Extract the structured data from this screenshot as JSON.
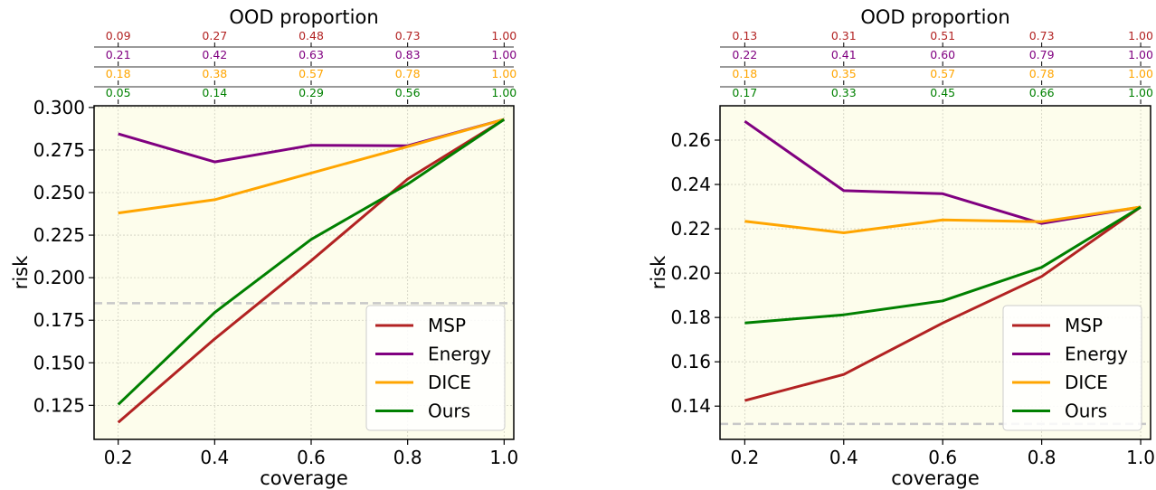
{
  "chart_data": [
    {
      "type": "line",
      "x": [
        0.2,
        0.4,
        0.6,
        0.8,
        1.0
      ],
      "xlabel": "coverage",
      "ylabel": "risk",
      "xticks": [
        "0.2",
        "0.4",
        "0.6",
        "0.8",
        "1.0"
      ],
      "yticks": [
        "0.125",
        "0.150",
        "0.175",
        "0.200",
        "0.225",
        "0.250",
        "0.275",
        "0.300"
      ],
      "ytick_values": [
        0.125,
        0.15,
        0.175,
        0.2,
        0.225,
        0.25,
        0.275,
        0.3
      ],
      "xlim": [
        0.15,
        1.02
      ],
      "ylim": [
        0.105,
        0.301
      ],
      "grid": true,
      "legend_position": "lower-right",
      "reference_line": 0.185,
      "series": [
        {
          "name": "MSP",
          "color": "#b22222",
          "values": [
            0.115,
            0.164,
            0.21,
            0.258,
            0.293
          ]
        },
        {
          "name": "Energy",
          "color": "#800080",
          "values": [
            0.2845,
            0.268,
            0.2778,
            0.2775,
            0.293
          ]
        },
        {
          "name": "DICE",
          "color": "#ffa500",
          "values": [
            0.238,
            0.2458,
            0.2615,
            0.277,
            0.293
          ]
        },
        {
          "name": "Ours",
          "color": "#008000",
          "values": [
            0.1255,
            0.1795,
            0.2225,
            0.255,
            0.293
          ]
        }
      ],
      "top_axis": {
        "title": "OOD proportion",
        "rows": [
          {
            "color": "#b22222",
            "labels": [
              "0.09",
              "0.27",
              "0.48",
              "0.73",
              "1.00"
            ]
          },
          {
            "color": "#800080",
            "labels": [
              "0.21",
              "0.42",
              "0.63",
              "0.83",
              "1.00"
            ]
          },
          {
            "color": "#ffa500",
            "labels": [
              "0.18",
              "0.38",
              "0.57",
              "0.78",
              "1.00"
            ]
          },
          {
            "color": "#008000",
            "labels": [
              "0.05",
              "0.14",
              "0.29",
              "0.56",
              "1.00"
            ]
          }
        ]
      }
    },
    {
      "type": "line",
      "x": [
        0.2,
        0.4,
        0.6,
        0.8,
        1.0
      ],
      "xlabel": "coverage",
      "ylabel": "risk",
      "xticks": [
        "0.2",
        "0.4",
        "0.6",
        "0.8",
        "1.0"
      ],
      "yticks": [
        "0.14",
        "0.16",
        "0.18",
        "0.20",
        "0.22",
        "0.24",
        "0.26"
      ],
      "ytick_values": [
        0.14,
        0.16,
        0.18,
        0.2,
        0.22,
        0.24,
        0.26
      ],
      "xlim": [
        0.15,
        1.02
      ],
      "ylim": [
        0.125,
        0.2755
      ],
      "grid": true,
      "legend_position": "lower-right",
      "reference_line": 0.132,
      "series": [
        {
          "name": "MSP",
          "color": "#b22222",
          "values": [
            0.1425,
            0.1543,
            0.1775,
            0.1985,
            0.2298
          ]
        },
        {
          "name": "Energy",
          "color": "#800080",
          "values": [
            0.2685,
            0.2372,
            0.2358,
            0.2224,
            0.2298
          ]
        },
        {
          "name": "DICE",
          "color": "#ffa500",
          "values": [
            0.2234,
            0.2182,
            0.224,
            0.2232,
            0.2298
          ]
        },
        {
          "name": "Ours",
          "color": "#008000",
          "values": [
            0.1775,
            0.1812,
            0.1875,
            0.2026,
            0.2298
          ]
        }
      ],
      "top_axis": {
        "title": "OOD proportion",
        "rows": [
          {
            "color": "#b22222",
            "labels": [
              "0.13",
              "0.31",
              "0.51",
              "0.73",
              "1.00"
            ]
          },
          {
            "color": "#800080",
            "labels": [
              "0.22",
              "0.41",
              "0.60",
              "0.79",
              "1.00"
            ]
          },
          {
            "color": "#ffa500",
            "labels": [
              "0.18",
              "0.35",
              "0.57",
              "0.78",
              "1.00"
            ]
          },
          {
            "color": "#008000",
            "labels": [
              "0.17",
              "0.33",
              "0.45",
              "0.66",
              "1.00"
            ]
          }
        ]
      }
    }
  ]
}
